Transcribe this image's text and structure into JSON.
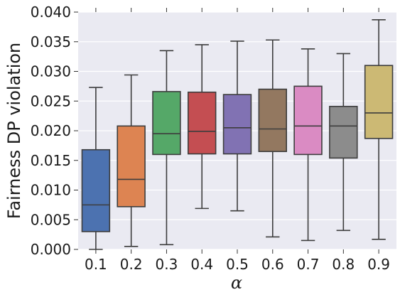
{
  "chart_data": {
    "type": "boxplot",
    "xlabel": "α",
    "ylabel": "Fairness DP violation",
    "ylim": [
      0,
      0.04
    ],
    "yticks": [
      "0.000",
      "0.005",
      "0.010",
      "0.015",
      "0.020",
      "0.025",
      "0.030",
      "0.035",
      "0.040"
    ],
    "grid": true,
    "categories": [
      "0.1",
      "0.2",
      "0.3",
      "0.4",
      "0.5",
      "0.6",
      "0.7",
      "0.8",
      "0.9"
    ],
    "boxes": [
      {
        "category": "0.1",
        "whisker_low": 0.0,
        "q1": 0.003,
        "median": 0.0075,
        "q3": 0.0168,
        "whisker_high": 0.0273,
        "color": "#4c72b0"
      },
      {
        "category": "0.2",
        "whisker_low": 0.0005,
        "q1": 0.0072,
        "median": 0.0118,
        "q3": 0.0208,
        "whisker_high": 0.0294,
        "color": "#dd8452"
      },
      {
        "category": "0.3",
        "whisker_low": 0.0008,
        "q1": 0.016,
        "median": 0.0195,
        "q3": 0.0266,
        "whisker_high": 0.0335,
        "color": "#55a868"
      },
      {
        "category": "0.4",
        "whisker_low": 0.0069,
        "q1": 0.0161,
        "median": 0.0199,
        "q3": 0.0265,
        "whisker_high": 0.0345,
        "color": "#c44e52"
      },
      {
        "category": "0.5",
        "whisker_low": 0.0065,
        "q1": 0.0161,
        "median": 0.0205,
        "q3": 0.0261,
        "whisker_high": 0.0351,
        "color": "#8172b3"
      },
      {
        "category": "0.6",
        "whisker_low": 0.0021,
        "q1": 0.0165,
        "median": 0.0203,
        "q3": 0.027,
        "whisker_high": 0.0353,
        "color": "#937860"
      },
      {
        "category": "0.7",
        "whisker_low": 0.0015,
        "q1": 0.016,
        "median": 0.0208,
        "q3": 0.0275,
        "whisker_high": 0.0338,
        "color": "#da8bc3"
      },
      {
        "category": "0.8",
        "whisker_low": 0.0032,
        "q1": 0.0154,
        "median": 0.0208,
        "q3": 0.0241,
        "whisker_high": 0.033,
        "color": "#8c8c8c"
      },
      {
        "category": "0.9",
        "whisker_low": 0.0017,
        "q1": 0.0187,
        "median": 0.023,
        "q3": 0.031,
        "whisker_high": 0.0387,
        "color": "#ccb974"
      }
    ],
    "colors": {
      "background": "#eaeaf2",
      "grid": "#ffffff",
      "box_edge": "#3d3d3d"
    }
  }
}
